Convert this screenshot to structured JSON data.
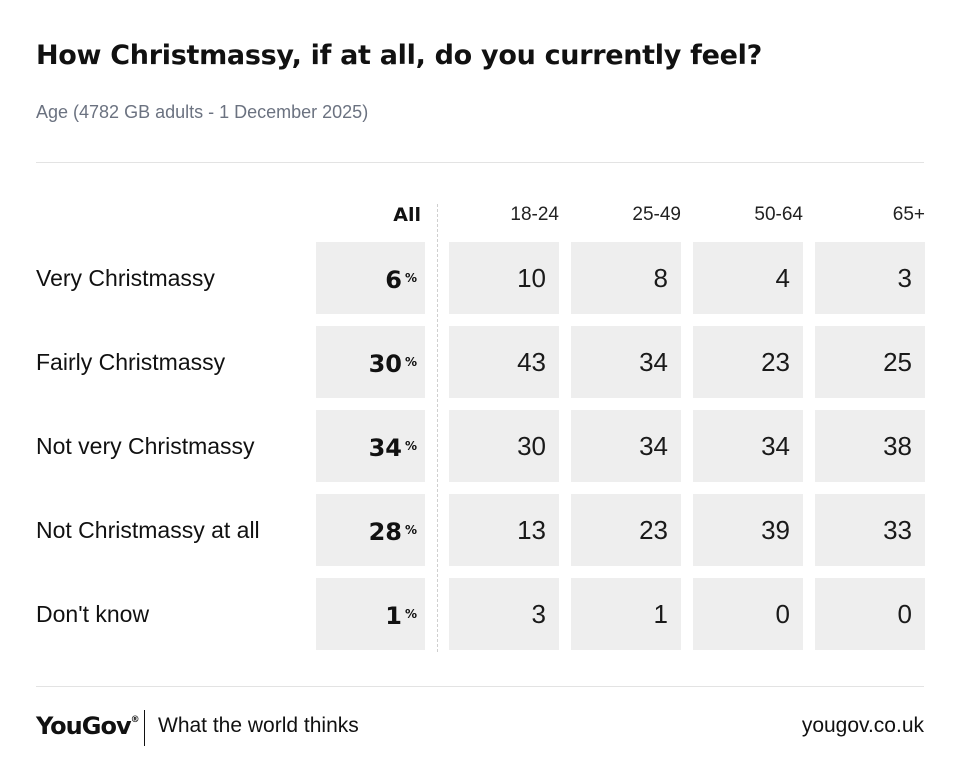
{
  "header": {
    "title": "How Christmassy, if at all, do you currently feel?",
    "subtitle": "Age (4782 GB adults - 1 December 2025)"
  },
  "chart_data": {
    "type": "table",
    "title": "How Christmassy, if at all, do you currently feel?",
    "subtitle": "Age (4782 GB adults - 1 December 2025)",
    "columns": [
      "All",
      "18-24",
      "25-49",
      "50-64",
      "65+"
    ],
    "percent_symbol": "%",
    "rows": [
      {
        "label": "Very Christmassy",
        "all": "6",
        "values": [
          "10",
          "8",
          "4",
          "3"
        ]
      },
      {
        "label": "Fairly Christmassy",
        "all": "30",
        "values": [
          "43",
          "34",
          "23",
          "25"
        ]
      },
      {
        "label": "Not very Christmassy",
        "all": "34",
        "values": [
          "30",
          "34",
          "34",
          "38"
        ]
      },
      {
        "label": "Not Christmassy at all",
        "all": "28",
        "values": [
          "13",
          "23",
          "39",
          "33"
        ]
      },
      {
        "label": "Don't know",
        "all": "1",
        "values": [
          "3",
          "1",
          "0",
          "0"
        ]
      }
    ]
  },
  "footer": {
    "logo": "YouGov",
    "logo_mark": "®",
    "tagline": "What the world thinks",
    "url": "yougov.co.uk"
  },
  "colors": {
    "cell_background": "#eeeeee",
    "text": "#111111",
    "subtitle": "#6b7280",
    "rule": "#e3e3e3"
  }
}
